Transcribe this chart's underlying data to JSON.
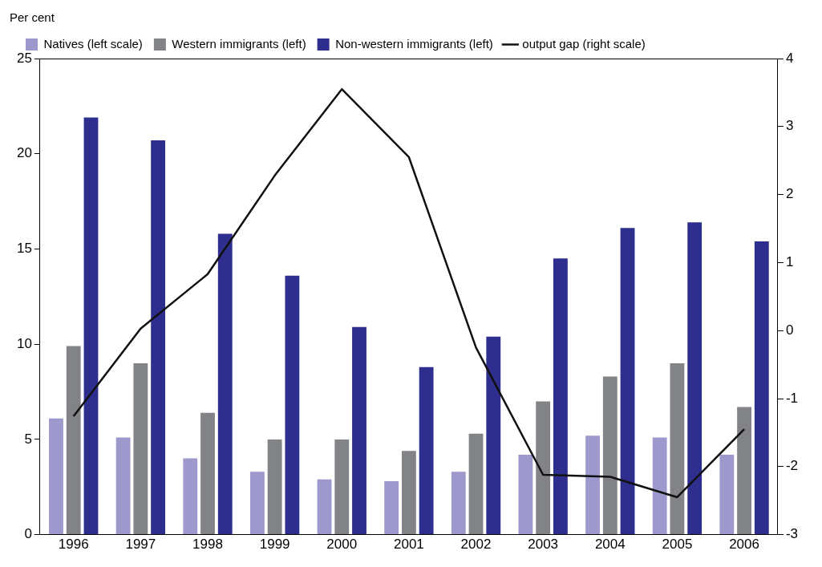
{
  "chart_data": {
    "type": "bar",
    "ylabel": "Per cent",
    "categories": [
      "1996",
      "1997",
      "1998",
      "1999",
      "2000",
      "2001",
      "2002",
      "2003",
      "2004",
      "2005",
      "2006"
    ],
    "series": [
      {
        "name": "Natives (left scale)",
        "color": "#9e99cc",
        "values": [
          6.1,
          5.1,
          4.0,
          3.3,
          2.9,
          2.8,
          3.3,
          4.2,
          5.2,
          5.1,
          4.2
        ]
      },
      {
        "name": "Western immigrants (left)",
        "color": "#828387",
        "values": [
          9.9,
          9.0,
          6.4,
          5.0,
          5.0,
          4.4,
          5.3,
          7.0,
          8.3,
          9.0,
          6.7
        ]
      },
      {
        "name": "Non-western immigrants (left)",
        "color": "#2e2e8f",
        "values": [
          21.9,
          20.7,
          15.8,
          13.6,
          10.9,
          8.8,
          10.4,
          14.5,
          16.1,
          16.4,
          15.4
        ]
      },
      {
        "name": "output gap (right scale)",
        "type": "line",
        "axis": "y2",
        "color": "#111111",
        "values": [
          -1.26,
          0.03,
          0.83,
          2.28,
          3.55,
          2.55,
          -0.25,
          -2.12,
          -2.15,
          -2.45,
          -1.45
        ]
      }
    ],
    "ylim": [
      0,
      25
    ],
    "yticks": [
      0,
      5,
      10,
      15,
      20,
      25
    ],
    "y2lim": [
      -3,
      4
    ],
    "y2ticks": [
      -3,
      -2,
      -1,
      0,
      1,
      2,
      3,
      4
    ],
    "grid": false,
    "legend": "top left",
    "marker": "none",
    "line_style": "solid"
  }
}
